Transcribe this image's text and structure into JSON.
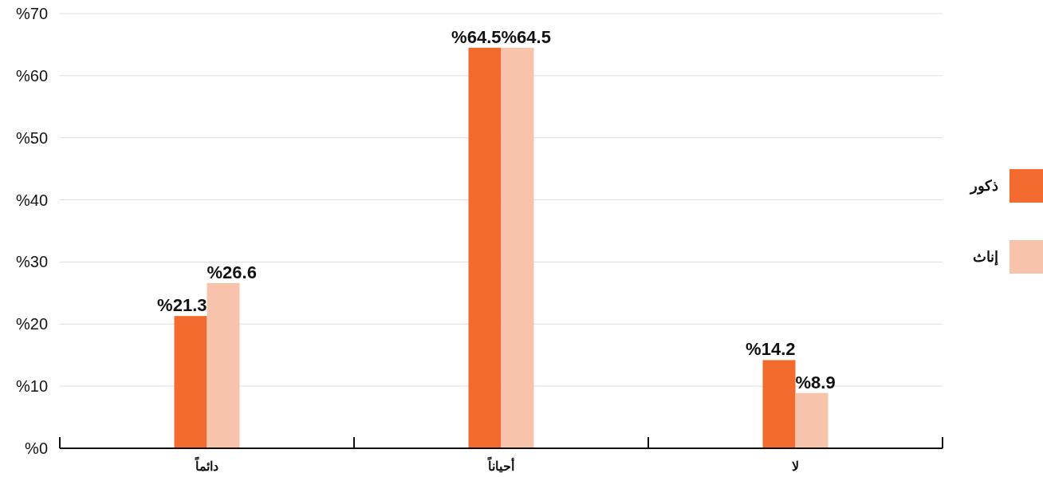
{
  "chart_data": {
    "type": "bar",
    "categories": [
      "دائماً",
      "أحياناً",
      "لا"
    ],
    "series": [
      {
        "name": "ذكور",
        "color": "#f26a2d",
        "values": [
          21.3,
          64.5,
          14.2
        ],
        "value_labels": [
          "%21.3",
          "%64.5",
          "%14.2"
        ]
      },
      {
        "name": "إناث",
        "color": "#f8c3ab",
        "values": [
          26.6,
          64.5,
          8.9
        ],
        "value_labels": [
          "%26.6",
          "%64.5",
          "%8.9"
        ]
      }
    ],
    "ylim": [
      0,
      70
    ],
    "yticks": [
      {
        "value": 0,
        "label": "%0"
      },
      {
        "value": 10,
        "label": "%10"
      },
      {
        "value": 20,
        "label": "%20"
      },
      {
        "value": 30,
        "label": "%30"
      },
      {
        "value": 40,
        "label": "%40"
      },
      {
        "value": 50,
        "label": "%50"
      },
      {
        "value": 60,
        "label": "%60"
      },
      {
        "value": 70,
        "label": "%70"
      }
    ],
    "grid": "y",
    "legend": "right"
  }
}
